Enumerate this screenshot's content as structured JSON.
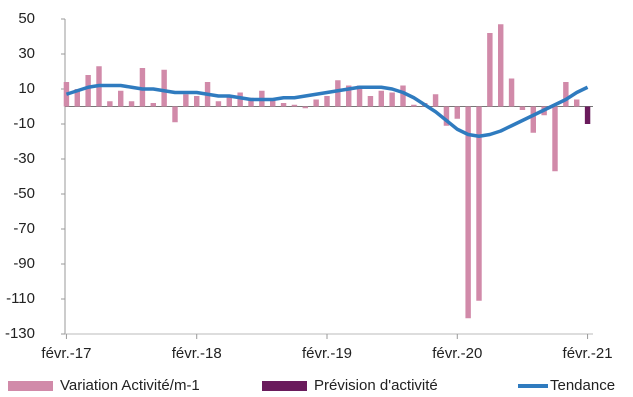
{
  "chart_data": {
    "type": "bar",
    "categories": [
      "févr.-17",
      null,
      null,
      null,
      null,
      null,
      null,
      null,
      null,
      null,
      null,
      null,
      "févr.-18",
      null,
      null,
      null,
      null,
      null,
      null,
      null,
      null,
      null,
      null,
      null,
      "févr.-19",
      null,
      null,
      null,
      null,
      null,
      null,
      null,
      null,
      null,
      null,
      null,
      "févr.-20",
      null,
      null,
      null,
      null,
      null,
      null,
      null,
      null,
      null,
      null,
      null,
      "févr.-21"
    ],
    "series": [
      {
        "name": "Variation Activité/m-1",
        "color": "#d18aa9",
        "values": [
          14,
          10,
          18,
          23,
          3,
          9,
          3,
          22,
          2,
          21,
          -9,
          7,
          6,
          14,
          3,
          6,
          8,
          5,
          9,
          4,
          2,
          1,
          -1,
          4,
          6,
          15,
          12,
          12,
          6,
          9,
          8,
          12,
          1,
          2,
          7,
          -11,
          -7,
          -121,
          -111,
          42,
          47,
          16,
          -2,
          -15,
          -5,
          -37,
          14,
          4,
          null
        ]
      },
      {
        "name": "Prévision d'activité",
        "color": "#6a1b5c",
        "values": [
          null,
          null,
          null,
          null,
          null,
          null,
          null,
          null,
          null,
          null,
          null,
          null,
          null,
          null,
          null,
          null,
          null,
          null,
          null,
          null,
          null,
          null,
          null,
          null,
          null,
          null,
          null,
          null,
          null,
          null,
          null,
          null,
          null,
          null,
          null,
          null,
          null,
          null,
          null,
          null,
          null,
          null,
          null,
          null,
          null,
          null,
          null,
          null,
          -10
        ]
      },
      {
        "name": "Tendance",
        "color": "#2f7bbf",
        "type": "line",
        "values": [
          7,
          9,
          11,
          12,
          12,
          12,
          11,
          10,
          10,
          9,
          8,
          8,
          8,
          7,
          6,
          6,
          5,
          4,
          4,
          4,
          5,
          5,
          6,
          7,
          8,
          9,
          10,
          11,
          11,
          11,
          10,
          8,
          5,
          1,
          -3,
          -8,
          -13,
          -16,
          -17,
          -16,
          -14,
          -11,
          -8,
          -5,
          -2,
          1,
          4,
          8,
          11
        ]
      }
    ],
    "ylim": [
      -130,
      50
    ],
    "yticks": [
      50,
      30,
      10,
      -10,
      -30,
      -50,
      -70,
      -90,
      -110,
      -130
    ],
    "legend": "bottom"
  }
}
